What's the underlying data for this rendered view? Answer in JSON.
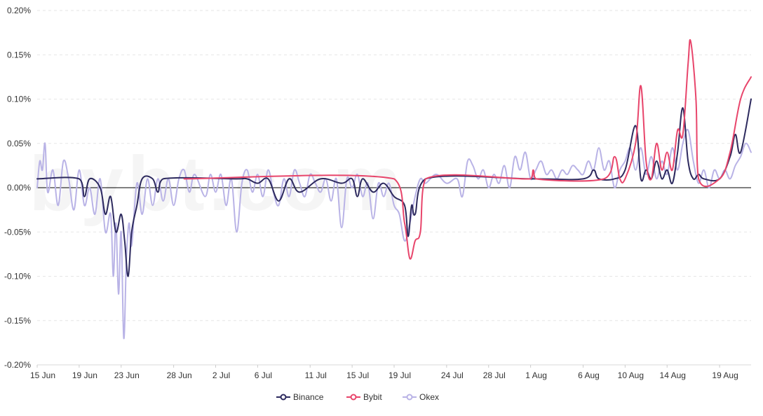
{
  "chart_data": {
    "type": "line",
    "title": "",
    "xlabel": "",
    "ylabel": "",
    "y_unit": "%",
    "ylim": [
      -0.2,
      0.2
    ],
    "y_ticks": [
      {
        "value": 0.2,
        "label": "0.20%"
      },
      {
        "value": 0.15,
        "label": "0.15%"
      },
      {
        "value": 0.1,
        "label": "0.10%"
      },
      {
        "value": 0.05,
        "label": "0.05%"
      },
      {
        "value": 0.0,
        "label": "0.00%"
      },
      {
        "value": -0.05,
        "label": "-0.05%"
      },
      {
        "value": -0.1,
        "label": "-0.10%"
      },
      {
        "value": -0.15,
        "label": "-0.15%"
      },
      {
        "value": -0.2,
        "label": "-0.20%"
      }
    ],
    "xlim": [
      "2021-06-15",
      "2021-08-22"
    ],
    "x_ticks": [
      {
        "date": "2021-06-15",
        "label": "15 Jun"
      },
      {
        "date": "2021-06-19",
        "label": "19 Jun"
      },
      {
        "date": "2021-06-23",
        "label": "23 Jun"
      },
      {
        "date": "2021-06-28",
        "label": "28 Jun"
      },
      {
        "date": "2021-07-02",
        "label": "2 Jul"
      },
      {
        "date": "2021-07-06",
        "label": "6 Jul"
      },
      {
        "date": "2021-07-11",
        "label": "11 Jul"
      },
      {
        "date": "2021-07-15",
        "label": "15 Jul"
      },
      {
        "date": "2021-07-19",
        "label": "19 Jul"
      },
      {
        "date": "2021-07-24",
        "label": "24 Jul"
      },
      {
        "date": "2021-07-28",
        "label": "28 Jul"
      },
      {
        "date": "2021-08-01",
        "label": "1 Aug"
      },
      {
        "date": "2021-08-06",
        "label": "6 Aug"
      },
      {
        "date": "2021-08-10",
        "label": "10 Aug"
      },
      {
        "date": "2021-08-14",
        "label": "14 Aug"
      },
      {
        "date": "2021-08-19",
        "label": "19 Aug"
      }
    ],
    "grid": "horizontal dashed",
    "legend_position": "bottom-center",
    "series": [
      {
        "name": "Binance",
        "color": "#2d2a5e",
        "points": [
          [
            "2021-06-15",
            0.01
          ],
          [
            "2021-06-19",
            0.01
          ],
          [
            "2021-06-19 12:00",
            -0.01
          ],
          [
            "2021-06-20",
            0.01
          ],
          [
            "2021-06-21",
            0.0
          ],
          [
            "2021-06-21 12:00",
            -0.03
          ],
          [
            "2021-06-22",
            -0.01
          ],
          [
            "2021-06-22 12:00",
            -0.05
          ],
          [
            "2021-06-23",
            -0.03
          ],
          [
            "2021-06-23 08:00",
            -0.06
          ],
          [
            "2021-06-23 16:00",
            -0.1
          ],
          [
            "2021-06-24",
            -0.05
          ],
          [
            "2021-06-24 12:00",
            -0.02
          ],
          [
            "2021-06-25",
            0.01
          ],
          [
            "2021-06-26",
            0.01
          ],
          [
            "2021-06-26 12:00",
            -0.005
          ],
          [
            "2021-06-27",
            0.01
          ],
          [
            "2021-07-04",
            0.01
          ],
          [
            "2021-07-05",
            0.01
          ],
          [
            "2021-07-06",
            0.005
          ],
          [
            "2021-07-07",
            0.01
          ],
          [
            "2021-07-08",
            -0.015
          ],
          [
            "2021-07-09",
            0.01
          ],
          [
            "2021-07-10",
            -0.005
          ],
          [
            "2021-07-12",
            0.01
          ],
          [
            "2021-07-14",
            0.005
          ],
          [
            "2021-07-15",
            0.01
          ],
          [
            "2021-07-15 12:00",
            -0.01
          ],
          [
            "2021-07-16",
            0.01
          ],
          [
            "2021-07-17",
            -0.005
          ],
          [
            "2021-07-18",
            0.005
          ],
          [
            "2021-07-19",
            -0.01
          ],
          [
            "2021-07-20",
            -0.02
          ],
          [
            "2021-07-20 08:00",
            -0.055
          ],
          [
            "2021-07-20 16:00",
            -0.02
          ],
          [
            "2021-07-21",
            -0.03
          ],
          [
            "2021-07-22",
            0.01
          ],
          [
            "2021-08-01",
            0.01
          ],
          [
            "2021-08-06",
            0.01
          ],
          [
            "2021-08-07",
            0.02
          ],
          [
            "2021-08-07 12:00",
            0.01
          ],
          [
            "2021-08-09",
            0.01
          ],
          [
            "2021-08-10",
            0.02
          ],
          [
            "2021-08-11",
            0.07
          ],
          [
            "2021-08-11 12:00",
            0.01
          ],
          [
            "2021-08-12",
            0.02
          ],
          [
            "2021-08-12 12:00",
            0.01
          ],
          [
            "2021-08-13",
            0.03
          ],
          [
            "2021-08-13 12:00",
            0.01
          ],
          [
            "2021-08-14",
            0.02
          ],
          [
            "2021-08-14 12:00",
            0.005
          ],
          [
            "2021-08-15",
            0.04
          ],
          [
            "2021-08-15 12:00",
            0.09
          ],
          [
            "2021-08-16",
            0.03
          ],
          [
            "2021-08-16 12:00",
            0.01
          ],
          [
            "2021-08-17",
            0.015
          ],
          [
            "2021-08-17 12:00",
            0.01
          ],
          [
            "2021-08-19",
            0.01
          ],
          [
            "2021-08-20",
            0.035
          ],
          [
            "2021-08-20 12:00",
            0.06
          ],
          [
            "2021-08-21",
            0.04
          ],
          [
            "2021-08-22",
            0.1
          ]
        ]
      },
      {
        "name": "Bybit",
        "color": "#e8456b",
        "points": [
          [
            "2021-06-29",
            0.01
          ],
          [
            "2021-07-19",
            0.01
          ],
          [
            "2021-07-20",
            -0.04
          ],
          [
            "2021-07-20 12:00",
            -0.08
          ],
          [
            "2021-07-21",
            -0.06
          ],
          [
            "2021-07-21 12:00",
            -0.05
          ],
          [
            "2021-07-22",
            0.01
          ],
          [
            "2021-08-01",
            0.01
          ],
          [
            "2021-08-01 06:00",
            0.02
          ],
          [
            "2021-08-01 12:00",
            0.01
          ],
          [
            "2021-08-08",
            0.01
          ],
          [
            "2021-08-09",
            0.035
          ],
          [
            "2021-08-09 12:00",
            0.01
          ],
          [
            "2021-08-10",
            0.01
          ],
          [
            "2021-08-11",
            0.05
          ],
          [
            "2021-08-11 12:00",
            0.115
          ],
          [
            "2021-08-12",
            0.03
          ],
          [
            "2021-08-12 12:00",
            0.01
          ],
          [
            "2021-08-13",
            0.05
          ],
          [
            "2021-08-13 12:00",
            0.02
          ],
          [
            "2021-08-14",
            0.04
          ],
          [
            "2021-08-14 12:00",
            0.02
          ],
          [
            "2021-08-15",
            0.065
          ],
          [
            "2021-08-15 12:00",
            0.06
          ],
          [
            "2021-08-16",
            0.14
          ],
          [
            "2021-08-16 06:00",
            0.165
          ],
          [
            "2021-08-16 18:00",
            0.1
          ],
          [
            "2021-08-17",
            0.01
          ],
          [
            "2021-08-19",
            0.01
          ],
          [
            "2021-08-20",
            0.04
          ],
          [
            "2021-08-21",
            0.1
          ],
          [
            "2021-08-22",
            0.125
          ]
        ]
      },
      {
        "name": "Okex",
        "color": "#b9b3e6",
        "points": [
          [
            "2021-06-15",
            0.0
          ],
          [
            "2021-06-15 06:00",
            0.03
          ],
          [
            "2021-06-15 12:00",
            0.02
          ],
          [
            "2021-06-15 18:00",
            0.05
          ],
          [
            "2021-06-16",
            -0.005
          ],
          [
            "2021-06-16 12:00",
            0.02
          ],
          [
            "2021-06-17",
            -0.02
          ],
          [
            "2021-06-17 12:00",
            0.03
          ],
          [
            "2021-06-18",
            0.01
          ],
          [
            "2021-06-18 12:00",
            -0.025
          ],
          [
            "2021-06-19",
            0.02
          ],
          [
            "2021-06-19 12:00",
            -0.02
          ],
          [
            "2021-06-20",
            0.0
          ],
          [
            "2021-06-20 12:00",
            -0.03
          ],
          [
            "2021-06-21",
            0.01
          ],
          [
            "2021-06-21 12:00",
            -0.05
          ],
          [
            "2021-06-22",
            -0.03
          ],
          [
            "2021-06-22 06:00",
            -0.1
          ],
          [
            "2021-06-22 12:00",
            -0.04
          ],
          [
            "2021-06-22 18:00",
            -0.12
          ],
          [
            "2021-06-23",
            -0.05
          ],
          [
            "2021-06-23 06:00",
            -0.17
          ],
          [
            "2021-06-23 12:00",
            -0.08
          ],
          [
            "2021-06-23 18:00",
            -0.04
          ],
          [
            "2021-06-24",
            -0.065
          ],
          [
            "2021-06-24 12:00",
            0.005
          ],
          [
            "2021-06-25",
            -0.03
          ],
          [
            "2021-06-25 12:00",
            0.01
          ],
          [
            "2021-06-26",
            -0.02
          ],
          [
            "2021-06-26 12:00",
            0.01
          ],
          [
            "2021-06-27",
            -0.015
          ],
          [
            "2021-06-27 12:00",
            0.01
          ],
          [
            "2021-06-28",
            -0.02
          ],
          [
            "2021-06-28 12:00",
            0.01
          ],
          [
            "2021-06-29",
            0.02
          ],
          [
            "2021-06-29 12:00",
            -0.005
          ],
          [
            "2021-06-30",
            0.015
          ],
          [
            "2021-07-01",
            -0.01
          ],
          [
            "2021-07-01 12:00",
            0.015
          ],
          [
            "2021-07-02",
            -0.005
          ],
          [
            "2021-07-02 12:00",
            0.015
          ],
          [
            "2021-07-03",
            -0.02
          ],
          [
            "2021-07-03 12:00",
            0.01
          ],
          [
            "2021-07-04",
            -0.05
          ],
          [
            "2021-07-04 12:00",
            0.005
          ],
          [
            "2021-07-05",
            0.02
          ],
          [
            "2021-07-05 12:00",
            -0.005
          ],
          [
            "2021-07-06",
            0.015
          ],
          [
            "2021-07-06 12:00",
            -0.01
          ],
          [
            "2021-07-07",
            0.02
          ],
          [
            "2021-07-07 12:00",
            -0.005
          ],
          [
            "2021-07-08",
            -0.02
          ],
          [
            "2021-07-08 12:00",
            0.01
          ],
          [
            "2021-07-09",
            -0.01
          ],
          [
            "2021-07-09 12:00",
            0.02
          ],
          [
            "2021-07-10",
            0.005
          ],
          [
            "2021-07-10 12:00",
            -0.01
          ],
          [
            "2021-07-11",
            0.015
          ],
          [
            "2021-07-11 12:00",
            0.005
          ],
          [
            "2021-07-12",
            -0.005
          ],
          [
            "2021-07-12 12:00",
            0.01
          ],
          [
            "2021-07-13",
            -0.015
          ],
          [
            "2021-07-13 12:00",
            0.01
          ],
          [
            "2021-07-14",
            -0.045
          ],
          [
            "2021-07-14 12:00",
            0.01
          ],
          [
            "2021-07-15",
            0.0
          ],
          [
            "2021-07-15 12:00",
            0.015
          ],
          [
            "2021-07-16",
            -0.01
          ],
          [
            "2021-07-16 12:00",
            0.005
          ],
          [
            "2021-07-17",
            -0.035
          ],
          [
            "2021-07-17 12:00",
            0.005
          ],
          [
            "2021-07-18",
            -0.01
          ],
          [
            "2021-07-18 12:00",
            0.005
          ],
          [
            "2021-07-19",
            -0.02
          ],
          [
            "2021-07-19 12:00",
            -0.03
          ],
          [
            "2021-07-20",
            -0.06
          ],
          [
            "2021-07-20 12:00",
            -0.04
          ],
          [
            "2021-07-21",
            -0.01
          ],
          [
            "2021-07-21 12:00",
            0.01
          ],
          [
            "2021-07-22",
            0.005
          ],
          [
            "2021-07-23",
            0.015
          ],
          [
            "2021-07-24",
            0.005
          ],
          [
            "2021-07-25",
            0.01
          ],
          [
            "2021-07-25 12:00",
            -0.01
          ],
          [
            "2021-07-26",
            0.03
          ],
          [
            "2021-07-26 12:00",
            0.025
          ],
          [
            "2021-07-27",
            0.01
          ],
          [
            "2021-07-27 12:00",
            0.02
          ],
          [
            "2021-07-28",
            0.0
          ],
          [
            "2021-07-28 12:00",
            0.015
          ],
          [
            "2021-07-29",
            0.005
          ],
          [
            "2021-07-29 12:00",
            0.025
          ],
          [
            "2021-07-30",
            0.0
          ],
          [
            "2021-07-30 12:00",
            0.035
          ],
          [
            "2021-07-31",
            0.02
          ],
          [
            "2021-07-31 12:00",
            0.04
          ],
          [
            "2021-08-01",
            0.01
          ],
          [
            "2021-08-01 12:00",
            0.02
          ],
          [
            "2021-08-02",
            0.03
          ],
          [
            "2021-08-02 12:00",
            0.015
          ],
          [
            "2021-08-03",
            0.02
          ],
          [
            "2021-08-03 12:00",
            0.01
          ],
          [
            "2021-08-04",
            0.02
          ],
          [
            "2021-08-04 12:00",
            0.015
          ],
          [
            "2021-08-05",
            0.025
          ],
          [
            "2021-08-05 12:00",
            0.02
          ],
          [
            "2021-08-06",
            0.015
          ],
          [
            "2021-08-06 12:00",
            0.03
          ],
          [
            "2021-08-07",
            0.02
          ],
          [
            "2021-08-07 12:00",
            0.045
          ],
          [
            "2021-08-08",
            0.02
          ],
          [
            "2021-08-08 12:00",
            0.03
          ],
          [
            "2021-08-09",
            0.0
          ],
          [
            "2021-08-09 12:00",
            0.02
          ],
          [
            "2021-08-10",
            0.03
          ],
          [
            "2021-08-10 12:00",
            0.045
          ],
          [
            "2021-08-11",
            0.02
          ],
          [
            "2021-08-11 12:00",
            0.045
          ],
          [
            "2021-08-12",
            0.015
          ],
          [
            "2021-08-12 12:00",
            0.035
          ],
          [
            "2021-08-13",
            0.01
          ],
          [
            "2021-08-13 12:00",
            0.03
          ],
          [
            "2021-08-14",
            0.015
          ],
          [
            "2021-08-14 12:00",
            0.045
          ],
          [
            "2021-08-15",
            0.02
          ],
          [
            "2021-08-15 12:00",
            0.05
          ],
          [
            "2021-08-16",
            0.065
          ],
          [
            "2021-08-16 12:00",
            0.03
          ],
          [
            "2021-08-17",
            0.005
          ],
          [
            "2021-08-17 12:00",
            0.02
          ],
          [
            "2021-08-18",
            0.0
          ],
          [
            "2021-08-18 12:00",
            0.02
          ],
          [
            "2021-08-19",
            0.01
          ],
          [
            "2021-08-19 12:00",
            0.02
          ],
          [
            "2021-08-20",
            0.01
          ],
          [
            "2021-08-20 12:00",
            0.025
          ],
          [
            "2021-08-21",
            0.035
          ],
          [
            "2021-08-21 12:00",
            0.05
          ],
          [
            "2021-08-22",
            0.04
          ]
        ]
      }
    ]
  },
  "watermark": "bybt.com"
}
